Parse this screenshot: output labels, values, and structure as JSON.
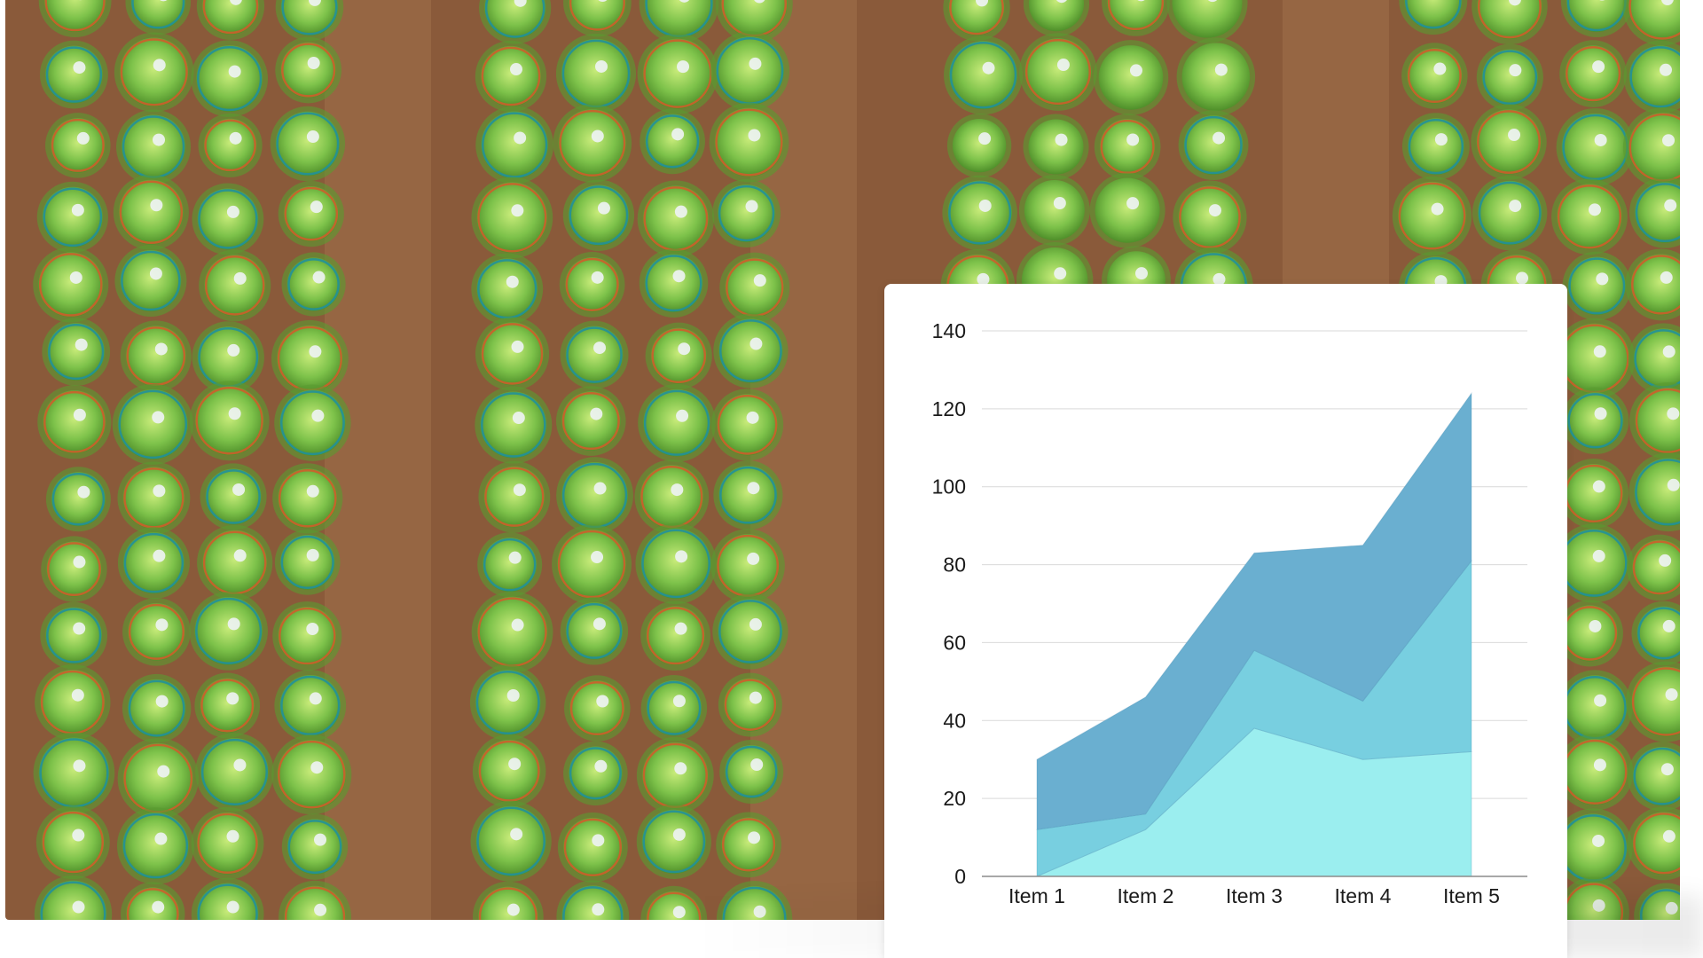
{
  "background": {
    "subject": "aerial-lettuce-field",
    "soil_color": "#8a5a3a",
    "plant_color": "#7dc24a",
    "marker_colors": [
      "#d45a2a",
      "#1f8fa0"
    ]
  },
  "chart_data": {
    "type": "area",
    "stacked": true,
    "categories": [
      "Item 1",
      "Item 2",
      "Item 3",
      "Item 4",
      "Item 5"
    ],
    "series": [
      {
        "values": [
          0,
          12,
          38,
          30,
          32
        ],
        "color": "#9beeef"
      },
      {
        "values": [
          12,
          4,
          20,
          15,
          49
        ],
        "color": "#78cfe0"
      },
      {
        "values": [
          18,
          30,
          25,
          40,
          43
        ],
        "color": "#6aafd0"
      }
    ],
    "yticks": [
      "0",
      "20",
      "40",
      "60",
      "80",
      "100",
      "120",
      "140"
    ],
    "ylim": [
      0,
      140
    ],
    "grid": true,
    "title": "",
    "xlabel": "",
    "ylabel": ""
  }
}
